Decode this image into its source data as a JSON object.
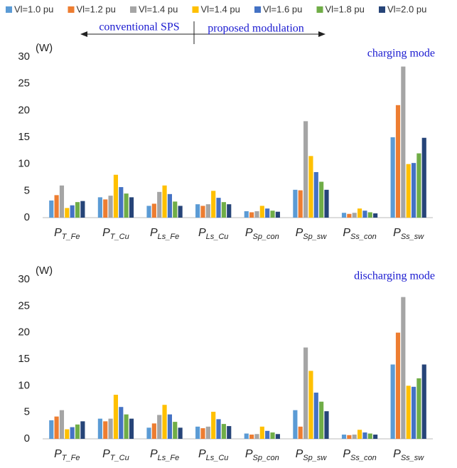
{
  "chart_data": [
    {
      "type": "bar",
      "title": "charging mode",
      "y_label": "(W)",
      "annotations": [
        "conventional SPS",
        "proposed modulation"
      ],
      "categories": [
        "PT_Fe",
        "PT_Cu",
        "PLs_Fe",
        "PLs_Cu",
        "PSp_con",
        "PSp_sw",
        "PSs_con",
        "PSs_sw"
      ],
      "series": [
        {
          "name": "Vl=1.0 pu",
          "color": "#5b9bd5",
          "values": [
            3.2,
            3.8,
            2.2,
            2.5,
            1.2,
            5.2,
            0.9,
            15.0
          ]
        },
        {
          "name": "Vl=1.2 pu",
          "color": "#ed7d31",
          "values": [
            4.2,
            3.4,
            2.6,
            2.2,
            1.0,
            5.1,
            0.7,
            21.0
          ]
        },
        {
          "name": "Vl=1.4 pu",
          "color": "#a5a5a5",
          "values": [
            6.0,
            4.1,
            4.8,
            2.5,
            1.2,
            18.0,
            0.9,
            28.2
          ]
        },
        {
          "name": "Vl=1.4 pu",
          "color": "#ffc000",
          "values": [
            1.8,
            8.0,
            6.0,
            5.0,
            2.2,
            11.5,
            1.7,
            10.0
          ]
        },
        {
          "name": "Vl=1.6 pu",
          "color": "#4472c4",
          "values": [
            2.3,
            5.7,
            4.4,
            3.7,
            1.7,
            8.5,
            1.3,
            10.2
          ]
        },
        {
          "name": "Vl=1.8 pu",
          "color": "#70ad47",
          "values": [
            2.9,
            4.5,
            3.0,
            2.9,
            1.3,
            6.7,
            1.0,
            12.0
          ]
        },
        {
          "name": "Vl=2.0 pu",
          "color": "#264478",
          "values": [
            3.1,
            3.8,
            2.2,
            2.5,
            1.1,
            5.2,
            0.8,
            14.9
          ]
        }
      ],
      "ylim": [
        0,
        30
      ],
      "yticks": [
        0,
        5,
        10,
        15,
        20,
        25,
        30
      ],
      "grid": false,
      "legend": "top"
    },
    {
      "type": "bar",
      "title": "discharging mode",
      "y_label": "(W)",
      "categories": [
        "PT_Fe",
        "PT_Cu",
        "PLs_Fe",
        "PLs_Cu",
        "PSp_con",
        "PSp_sw",
        "PSs_con",
        "PSs_sw"
      ],
      "series": [
        {
          "color": "#5b9bd5",
          "values": [
            3.5,
            3.8,
            2.1,
            2.3,
            1.0,
            5.4,
            0.8,
            14.0
          ]
        },
        {
          "color": "#ed7d31",
          "values": [
            4.2,
            3.3,
            2.9,
            2.0,
            0.8,
            2.3,
            0.7,
            20.0
          ]
        },
        {
          "color": "#a5a5a5",
          "values": [
            5.4,
            3.8,
            4.5,
            2.3,
            0.9,
            17.2,
            0.8,
            26.7
          ]
        },
        {
          "color": "#ffc000",
          "values": [
            1.8,
            8.3,
            6.4,
            5.1,
            2.3,
            12.8,
            1.7,
            10.0
          ]
        },
        {
          "color": "#4472c4",
          "values": [
            2.2,
            6.0,
            4.6,
            3.7,
            1.5,
            8.7,
            1.2,
            9.8
          ]
        },
        {
          "color": "#70ad47",
          "values": [
            2.7,
            4.6,
            3.2,
            2.8,
            1.2,
            7.0,
            1.0,
            11.4
          ]
        },
        {
          "color": "#264478",
          "values": [
            3.3,
            3.8,
            2.1,
            2.4,
            0.9,
            5.2,
            0.8,
            14.0
          ]
        }
      ],
      "ylim": [
        0,
        30
      ],
      "yticks": [
        0,
        5,
        10,
        15,
        20,
        25,
        30
      ],
      "grid": false
    }
  ]
}
